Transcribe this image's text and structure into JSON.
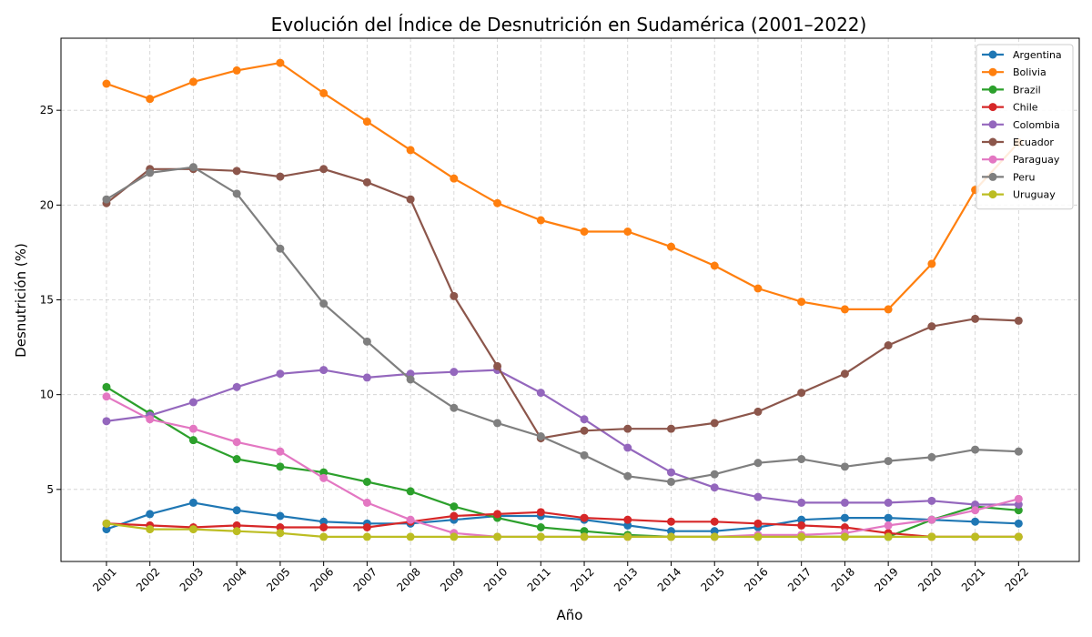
{
  "chart_data": {
    "type": "line",
    "title": "Evolución del Índice de Desnutrición en Sudamérica (2001–2022)",
    "xlabel": "Año",
    "ylabel": "Desnutrición (%)",
    "x": [
      "2001",
      "2002",
      "2003",
      "2004",
      "2005",
      "2006",
      "2007",
      "2008",
      "2009",
      "2010",
      "2011",
      "2012",
      "2013",
      "2014",
      "2015",
      "2016",
      "2017",
      "2018",
      "2019",
      "2020",
      "2021",
      "2022"
    ],
    "yticks": [
      5,
      10,
      15,
      20,
      25
    ],
    "ylim": [
      1.2,
      28.8
    ],
    "grid": true,
    "legend_position": "top-right",
    "series": [
      {
        "name": "Argentina",
        "color": "#1f77b4",
        "values": [
          2.9,
          3.7,
          4.3,
          3.9,
          3.6,
          3.3,
          3.2,
          3.2,
          3.4,
          3.6,
          3.6,
          3.4,
          3.1,
          2.8,
          2.8,
          3.0,
          3.4,
          3.5,
          3.5,
          3.4,
          3.3,
          3.2
        ]
      },
      {
        "name": "Bolivia",
        "color": "#ff7f0e",
        "values": [
          26.4,
          25.6,
          26.5,
          27.1,
          27.5,
          25.9,
          24.4,
          22.9,
          21.4,
          20.1,
          19.2,
          18.6,
          18.6,
          17.8,
          16.8,
          15.6,
          14.9,
          14.5,
          14.5,
          16.9,
          20.8,
          23.3
        ]
      },
      {
        "name": "Brazil",
        "color": "#2ca02c",
        "values": [
          10.4,
          9.0,
          7.6,
          6.6,
          6.2,
          5.9,
          5.4,
          4.9,
          4.1,
          3.5,
          3.0,
          2.8,
          2.6,
          2.5,
          2.5,
          2.5,
          2.5,
          2.5,
          2.5,
          3.4,
          4.1,
          3.9
        ]
      },
      {
        "name": "Chile",
        "color": "#d62728",
        "values": [
          3.2,
          3.1,
          3.0,
          3.1,
          3.0,
          3.0,
          3.0,
          3.3,
          3.6,
          3.7,
          3.8,
          3.5,
          3.4,
          3.3,
          3.3,
          3.2,
          3.1,
          3.0,
          2.7,
          2.5,
          2.5,
          2.5
        ]
      },
      {
        "name": "Colombia",
        "color": "#9467bd",
        "values": [
          8.6,
          8.9,
          9.6,
          10.4,
          11.1,
          11.3,
          10.9,
          11.1,
          11.2,
          11.3,
          10.1,
          8.7,
          7.2,
          5.9,
          5.1,
          4.6,
          4.3,
          4.3,
          4.3,
          4.4,
          4.2,
          4.2
        ]
      },
      {
        "name": "Ecuador",
        "color": "#8c564b",
        "values": [
          20.1,
          21.9,
          21.9,
          21.8,
          21.5,
          21.9,
          21.2,
          20.3,
          15.2,
          11.5,
          7.7,
          8.1,
          8.2,
          8.2,
          8.5,
          9.1,
          10.1,
          11.1,
          12.6,
          13.6,
          14.0,
          13.9
        ]
      },
      {
        "name": "Paraguay",
        "color": "#e377c2",
        "values": [
          9.9,
          8.7,
          8.2,
          7.5,
          7.0,
          5.6,
          4.3,
          3.4,
          2.7,
          2.5,
          2.5,
          2.5,
          2.5,
          2.5,
          2.5,
          2.6,
          2.6,
          2.7,
          3.1,
          3.4,
          3.9,
          4.5
        ]
      },
      {
        "name": "Peru",
        "color": "#7f7f7f",
        "values": [
          20.3,
          21.7,
          22.0,
          20.6,
          17.7,
          14.8,
          12.8,
          10.8,
          9.3,
          8.5,
          7.8,
          6.8,
          5.7,
          5.4,
          5.8,
          6.4,
          6.6,
          6.2,
          6.5,
          6.7,
          7.1,
          7.0
        ]
      },
      {
        "name": "Uruguay",
        "color": "#bcbd22",
        "values": [
          3.2,
          2.9,
          2.9,
          2.8,
          2.7,
          2.5,
          2.5,
          2.5,
          2.5,
          2.5,
          2.5,
          2.5,
          2.5,
          2.5,
          2.5,
          2.5,
          2.5,
          2.5,
          2.5,
          2.5,
          2.5,
          2.5
        ]
      }
    ]
  }
}
